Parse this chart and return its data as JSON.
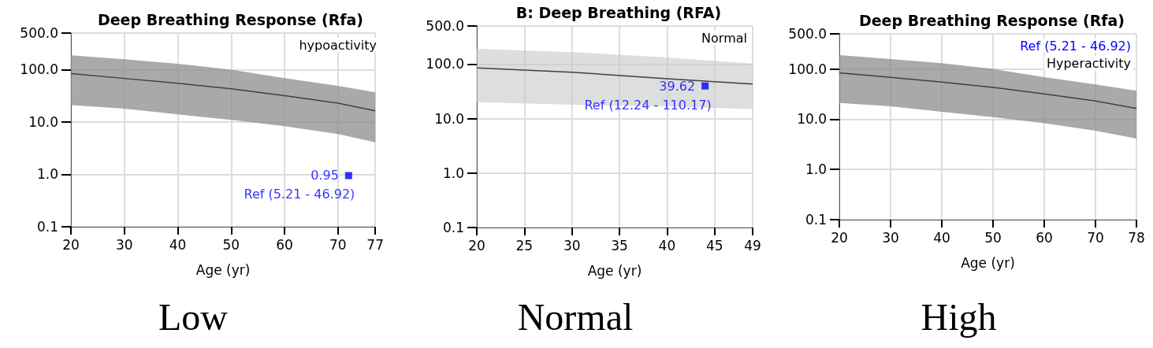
{
  "chart_data": [
    {
      "type": "line",
      "title": "Deep Breathing Response (Rfa)",
      "xlabel": "Age (yr)",
      "log": "y",
      "grid": true,
      "xlim": [
        20,
        77
      ],
      "xticks": [
        20,
        30,
        40,
        50,
        60,
        70,
        77
      ],
      "ylim": [
        0.1,
        500
      ],
      "yticks": [
        {
          "value": 0.1,
          "label": "0.1"
        },
        {
          "value": 1,
          "label": "1.0"
        },
        {
          "value": 10,
          "label": "10.0"
        },
        {
          "value": 100,
          "label": "100.0"
        },
        {
          "value": 500,
          "label": "500.0"
        }
      ],
      "series": [
        {
          "color": "#404040",
          "x": [
            20,
            30,
            40,
            50,
            60,
            70,
            77
          ],
          "values": [
            84,
            68,
            55,
            43,
            32,
            23,
            16.4
          ],
          "lower": [
            21,
            18,
            14,
            11,
            8.3,
            5.9,
            4.1
          ],
          "upper": [
            188,
            158,
            130,
            100,
            69,
            49,
            37
          ]
        },
        {
          "type": "scatter",
          "marker": "square",
          "color": "#0000ff",
          "x": [
            72
          ],
          "values": [
            0.95
          ],
          "value_labels": [
            "0.95"
          ]
        }
      ],
      "annotations": [
        "hypoactivity",
        {
          "text": "Ref (5.21 - 46.92)",
          "x": 72,
          "y": 0.95
        },
        "Low"
      ]
    },
    {
      "type": "line",
      "title": "B: Deep Breathing (RFA)",
      "xlabel": "Age (yr)",
      "log": "y",
      "grid": true,
      "xlim": [
        20,
        49
      ],
      "xticks": [
        20,
        25,
        30,
        35,
        40,
        45,
        49
      ],
      "ylim": [
        0.1,
        500
      ],
      "yticks": [
        {
          "value": 0.1,
          "label": "0.1"
        },
        {
          "value": 1,
          "label": "1.0"
        },
        {
          "value": 10,
          "label": "10.0"
        },
        {
          "value": 100,
          "label": "100.0"
        },
        {
          "value": 500,
          "label": "500.0"
        }
      ],
      "series": [
        {
          "color": "#404040",
          "x": [
            20,
            30,
            40,
            49
          ],
          "values": [
            85,
            71,
            54,
            43
          ],
          "lower": [
            20,
            18,
            16.6,
            15
          ],
          "upper": [
            190,
            166,
            132,
            102
          ]
        },
        {
          "type": "scatter",
          "marker": "square",
          "color": "#0000ff",
          "x": [
            44
          ],
          "values": [
            39.62
          ],
          "value_labels": [
            "39.62"
          ]
        }
      ],
      "annotations": [
        "Normal",
        {
          "text": "Ref (12.24 - 110.17)",
          "x": 44,
          "y": 39.62
        },
        "Normal"
      ]
    },
    {
      "type": "line",
      "title": "Deep Breathing Response (Rfa)",
      "xlabel": "Age (yr)",
      "log": "y",
      "grid": true,
      "xlim": [
        20,
        78
      ],
      "xticks": [
        20,
        30,
        40,
        50,
        60,
        70,
        78
      ],
      "ylim": [
        0.1,
        500
      ],
      "yticks": [
        {
          "value": 0.1,
          "label": "0.1"
        },
        {
          "value": 1,
          "label": "1.0"
        },
        {
          "value": 10,
          "label": "10.0"
        },
        {
          "value": 100,
          "label": "100.0"
        },
        {
          "value": 500,
          "label": "500.0"
        }
      ],
      "series": [
        {
          "color": "#404040",
          "x": [
            20,
            30,
            40,
            50,
            60,
            70,
            78
          ],
          "values": [
            84,
            68,
            55,
            43,
            32,
            23,
            16.4
          ],
          "lower": [
            21,
            18,
            14,
            11,
            8.3,
            5.9,
            4.1
          ],
          "upper": [
            188,
            158,
            130,
            100,
            69,
            49,
            37
          ]
        }
      ],
      "annotations": [
        "Ref (5.21 - 46.92)",
        "Hyperactivity",
        "High"
      ]
    }
  ]
}
